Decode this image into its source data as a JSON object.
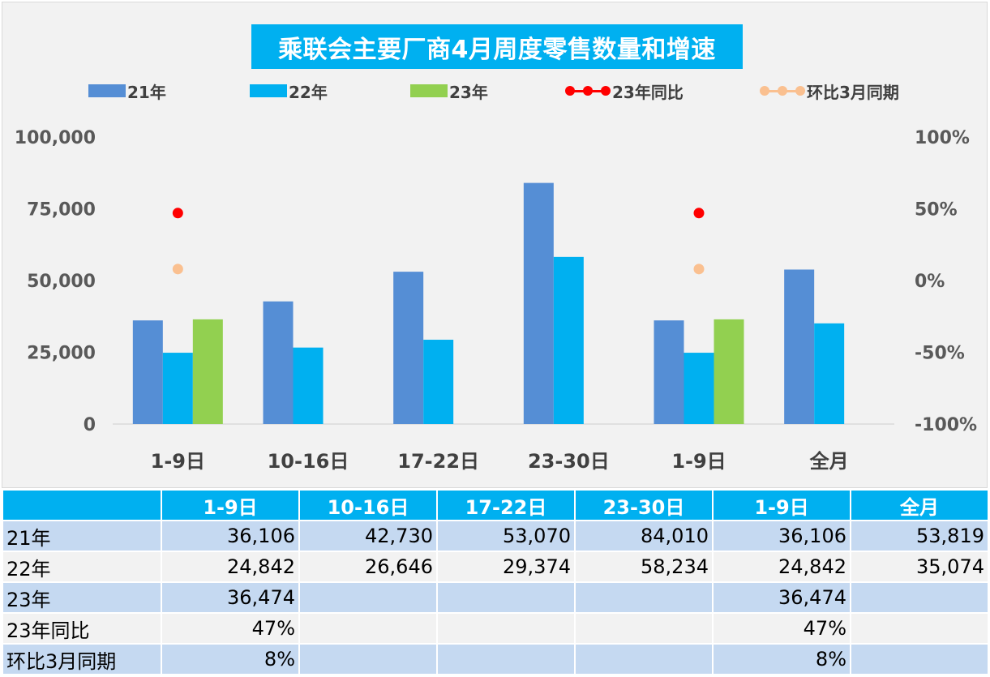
{
  "chart_data": {
    "type": "bar",
    "title": "乘联会主要厂商4月周度零售数量和增速",
    "categories": [
      "1-9日",
      "10-16日",
      "17-22日",
      "23-30日",
      "1-9日",
      "全月"
    ],
    "series": [
      {
        "name": "21年",
        "kind": "bar",
        "color": "#558ed5",
        "values": [
          36106,
          42730,
          53070,
          84010,
          36106,
          53819
        ]
      },
      {
        "name": "22年",
        "kind": "bar",
        "color": "#00b0f0",
        "values": [
          24842,
          26646,
          29374,
          58234,
          24842,
          35074
        ]
      },
      {
        "name": "23年",
        "kind": "bar",
        "color": "#92d050",
        "values": [
          36474,
          null,
          null,
          null,
          36474,
          null
        ]
      },
      {
        "name": "23年同比",
        "kind": "line-points",
        "axis": "right",
        "color": "#ff0000",
        "values": [
          0.47,
          null,
          null,
          null,
          0.47,
          null
        ]
      },
      {
        "name": "环比3月同期",
        "kind": "line-points",
        "axis": "right",
        "color": "#fac090",
        "values": [
          0.08,
          null,
          null,
          null,
          0.08,
          null
        ]
      }
    ],
    "ylim": [
      0,
      100000
    ],
    "y_ticks": [
      "0",
      "25,000",
      "50,000",
      "75,000",
      "100,000"
    ],
    "y2lim": [
      -1,
      1
    ],
    "y2_ticks": [
      "-100%",
      "-50%",
      "0%",
      "50%",
      "100%"
    ],
    "legend_position": "top",
    "grid": false
  },
  "table": {
    "headers": [
      "",
      "1-9日",
      "10-16日",
      "17-22日",
      "23-30日",
      "1-9日",
      "全月"
    ],
    "rows": [
      {
        "label": "21年",
        "cells": [
          "36,106",
          "42,730",
          "53,070",
          "84,010",
          "36,106",
          "53,819"
        ]
      },
      {
        "label": "22年",
        "cells": [
          "24,842",
          "26,646",
          "29,374",
          "58,234",
          "24,842",
          "35,074"
        ]
      },
      {
        "label": "23年",
        "cells": [
          "36,474",
          "",
          "",
          "",
          "36,474",
          ""
        ]
      },
      {
        "label": "23年同比",
        "cells": [
          "47%",
          "",
          "",
          "",
          "47%",
          ""
        ]
      },
      {
        "label": "环比3月同期",
        "cells": [
          "8%",
          "",
          "",
          "",
          "8%",
          ""
        ]
      }
    ]
  }
}
